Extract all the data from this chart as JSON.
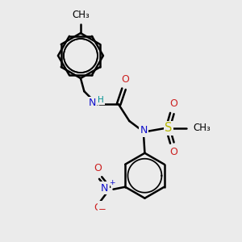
{
  "bg_color": "#ebebeb",
  "bond_color": "#000000",
  "bond_width": 1.8,
  "atom_colors": {
    "N": "#1010cc",
    "O": "#cc2020",
    "S": "#b8b800",
    "C": "#000000",
    "H": "#009090"
  },
  "font_size": 8.5,
  "fig_size": [
    3.0,
    3.0
  ],
  "dpi": 100,
  "xlim": [
    0,
    10
  ],
  "ylim": [
    0,
    10
  ]
}
